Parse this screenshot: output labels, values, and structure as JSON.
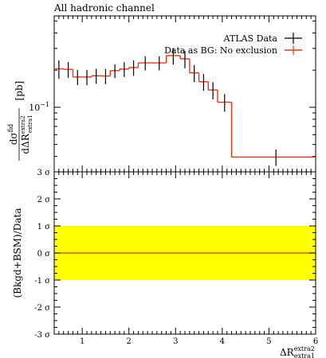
{
  "chart_data": [
    {
      "type": "line",
      "title": "All hadronic channel",
      "ylabel": "dσ^fid / dΔR^extra2_extra1 [pb]",
      "ylabel_parts": {
        "num": "dσ",
        "num_sup": "fid",
        "den": "dΔR",
        "den_sup": "extra2",
        "den_sub": "extra1",
        "unit": "[pb]"
      },
      "yscale": "log",
      "xlim": [
        0.4,
        6.0
      ],
      "ylim": [
        0.03,
        0.55
      ],
      "ytick_labels": [
        {
          "value": 0.1,
          "base": "10",
          "exp": "−1"
        }
      ],
      "legend": {
        "placement": "top-right",
        "entries": [
          "ATLAS Data",
          "Data as BG: No exclusion"
        ]
      },
      "series": [
        {
          "name": "ATLAS Data",
          "color": "#000000",
          "style": "points-with-errorbars",
          "points": [
            {
              "x": 0.5,
              "y": 0.205,
              "err": 0.035
            },
            {
              "x": 0.7,
              "y": 0.203,
              "err": 0.03
            },
            {
              "x": 0.9,
              "y": 0.176,
              "err": 0.025
            },
            {
              "x": 1.1,
              "y": 0.176,
              "err": 0.025
            },
            {
              "x": 1.3,
              "y": 0.18,
              "err": 0.025
            },
            {
              "x": 1.5,
              "y": 0.179,
              "err": 0.025
            },
            {
              "x": 1.7,
              "y": 0.198,
              "err": 0.025
            },
            {
              "x": 1.9,
              "y": 0.204,
              "err": 0.028
            },
            {
              "x": 2.1,
              "y": 0.21,
              "err": 0.03
            },
            {
              "x": 2.35,
              "y": 0.229,
              "err": 0.03
            },
            {
              "x": 2.65,
              "y": 0.229,
              "err": 0.03
            },
            {
              "x": 2.95,
              "y": 0.262,
              "err": 0.04
            },
            {
              "x": 3.2,
              "y": 0.247,
              "err": 0.04
            },
            {
              "x": 3.4,
              "y": 0.19,
              "err": 0.03
            },
            {
              "x": 3.6,
              "y": 0.161,
              "err": 0.025
            },
            {
              "x": 3.8,
              "y": 0.138,
              "err": 0.022
            },
            {
              "x": 4.05,
              "y": 0.11,
              "err": 0.018
            },
            {
              "x": 5.15,
              "y": 0.0395,
              "err": 0.006
            }
          ]
        },
        {
          "name": "Data as BG: No exclusion",
          "color": "#ee3311",
          "style": "histogram",
          "bins": [
            {
              "lo": 0.4,
              "hi": 0.6,
              "y": 0.205
            },
            {
              "lo": 0.6,
              "hi": 0.8,
              "y": 0.203
            },
            {
              "lo": 0.8,
              "hi": 1.0,
              "y": 0.176
            },
            {
              "lo": 1.0,
              "hi": 1.2,
              "y": 0.176
            },
            {
              "lo": 1.2,
              "hi": 1.4,
              "y": 0.18
            },
            {
              "lo": 1.4,
              "hi": 1.6,
              "y": 0.179
            },
            {
              "lo": 1.6,
              "hi": 1.8,
              "y": 0.198
            },
            {
              "lo": 1.8,
              "hi": 2.0,
              "y": 0.204
            },
            {
              "lo": 2.0,
              "hi": 2.2,
              "y": 0.21
            },
            {
              "lo": 2.2,
              "hi": 2.5,
              "y": 0.229
            },
            {
              "lo": 2.5,
              "hi": 2.8,
              "y": 0.229
            },
            {
              "lo": 2.8,
              "hi": 3.1,
              "y": 0.262
            },
            {
              "lo": 3.1,
              "hi": 3.3,
              "y": 0.247
            },
            {
              "lo": 3.3,
              "hi": 3.5,
              "y": 0.19
            },
            {
              "lo": 3.5,
              "hi": 3.7,
              "y": 0.161
            },
            {
              "lo": 3.7,
              "hi": 3.9,
              "y": 0.138
            },
            {
              "lo": 3.9,
              "hi": 4.2,
              "y": 0.11
            },
            {
              "lo": 4.2,
              "hi": 6.0,
              "y": 0.0395
            }
          ]
        }
      ]
    },
    {
      "type": "area",
      "ylabel": "(Bkgd+BSM)/Data",
      "xlabel": "ΔR^extra2_extra1",
      "xlabel_parts": {
        "base": "ΔR",
        "sup": "extra2",
        "sub": "extra1"
      },
      "xlim": [
        0.4,
        6.0
      ],
      "ylim": [
        -3,
        3
      ],
      "x_ticks": [
        1,
        2,
        3,
        4,
        5,
        6
      ],
      "x_tick_labels": [
        "1",
        "2",
        "3",
        "4",
        "5",
        "6"
      ],
      "y_ticks": [
        3,
        2,
        1,
        0,
        -1,
        -2,
        -3
      ],
      "y_tick_labels": [
        "3 σ",
        "2 σ",
        "1 σ",
        "0 σ",
        "-1 σ",
        "-2 σ",
        "-3 σ"
      ],
      "band": {
        "lo": -1,
        "hi": 1,
        "color": "#ffff00"
      },
      "line": {
        "y": 0,
        "color": "#ee3311"
      }
    }
  ]
}
